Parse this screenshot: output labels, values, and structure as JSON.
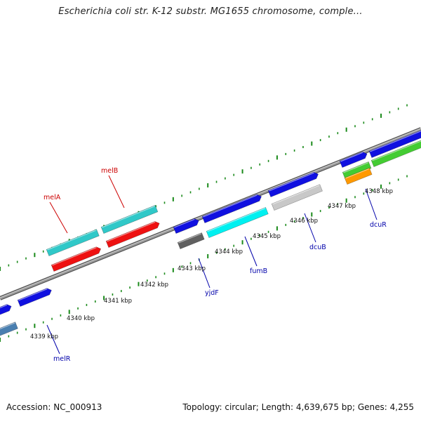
{
  "map": {
    "title": "Escherichia coli str. K-12 substr. MG1655 chromosome, comple...",
    "accession": "Accession: NC_000913",
    "summary": "Topology: circular; Length: 4,639,675 bp; Genes: 4,255"
  },
  "ruler": [
    "4339 kbp",
    "4340 kbp",
    "4341 kbp",
    "4342 kbp",
    "4343 kbp",
    "4344 kbp",
    "4345 kbp",
    "4346 kbp",
    "4347 kbp",
    "4348 kbp"
  ],
  "gene_labels": [
    {
      "name": "melB",
      "color": "#cc0000"
    },
    {
      "name": "melA",
      "color": "#cc0000"
    },
    {
      "name": "melR",
      "color": "#0000aa"
    },
    {
      "name": "yjdF",
      "color": "#0000aa"
    },
    {
      "name": "fumB",
      "color": "#0000aa"
    },
    {
      "name": "dcuB",
      "color": "#0000aa"
    },
    {
      "name": "dcuR",
      "color": "#0000aa"
    }
  ],
  "colors": {
    "backbone": "#8a8a8a",
    "tick_green": "#1a8a1a",
    "forward_cds": "#1010e0",
    "rna_cyan": "#30c8c8",
    "reverse_red": "#ee1111",
    "bright_cyan": "#00f0f0",
    "grey_gene": "#c8c8c8",
    "dark_grey_gene": "#606060",
    "green_gene": "#44cc33",
    "orange_gene": "#ff9900",
    "steel_blue_gene": "#4a7fb0"
  }
}
